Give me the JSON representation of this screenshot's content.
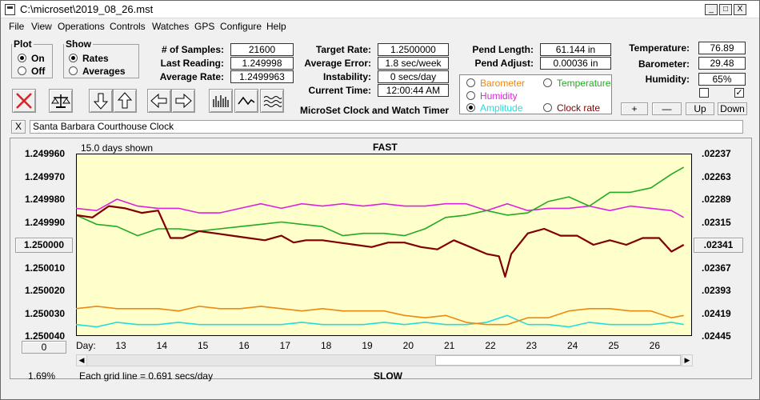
{
  "window": {
    "title": "C:\\microset\\2019_08_26.mst",
    "minimize": "_",
    "maximize": "□",
    "close": "X"
  },
  "menu": [
    "File",
    "View",
    "Operations",
    "Controls",
    "Watches",
    "GPS",
    "Configure",
    "Help"
  ],
  "plot_group": {
    "legend": "Plot",
    "on": "On",
    "off": "Off",
    "selected": "On"
  },
  "show_group": {
    "legend": "Show",
    "rates": "Rates",
    "averages": "Averages",
    "selected": "Rates"
  },
  "stats": {
    "samples_label": "# of Samples:",
    "samples": "21600",
    "last_label": "Last Reading:",
    "last": "1.249998",
    "avg_label": "Average Rate:",
    "avg": "1.2499963"
  },
  "rates": {
    "target_label": "Target Rate:",
    "target": "1.2500000",
    "error_label": "Average Error:",
    "error": "1.8 sec/week",
    "instability_label": "Instability:",
    "instability": "0 secs/day",
    "time_label": "Current Time:",
    "time": "12:00:44 AM"
  },
  "app_caption": "MicroSet Clock and Watch Timer",
  "pend": {
    "length_label": "Pend Length:",
    "length": "61.144 in",
    "adjust_label": "Pend Adjust:",
    "adjust": "0.00036 in"
  },
  "env": {
    "temp_label": "Temperature:",
    "temp": "76.89",
    "baro_label": "Barometer:",
    "baro": "29.48",
    "hum_label": "Humidity:",
    "hum": "65%"
  },
  "series_selector": {
    "barometer": "Barometer",
    "temperature": "Temperature",
    "humidity": "Humidity",
    "amplitude": "Amplitude",
    "clock_rate": "Clock rate"
  },
  "adjust_buttons": {
    "plus": "+",
    "minus": "—",
    "up": "Up",
    "down": "Down"
  },
  "watch_name": "Santa Barbara Courthouse Clock",
  "watch_clear": "X",
  "chart_labels": {
    "days_shown": "15.0 days shown",
    "fast": "FAST",
    "slow": "SLOW",
    "grid_info": "Each grid line = 0.691 secs/day",
    "percent": "1.69%",
    "offset_btn": "0",
    "day_prefix": "Day:",
    "center_value": "1.250000",
    "center_right": ".02341"
  },
  "colors": {
    "plot_bg": "#ffffcc",
    "rate": "#800000",
    "temperature": "#22aa22",
    "humidity": "#dd22dd",
    "barometer": "#ee8811",
    "amplitude": "#22dddd",
    "close_x": "#dd2222"
  },
  "chart_data": {
    "type": "line",
    "x_label": "Day:",
    "x_ticks": [
      "13",
      "14",
      "15",
      "16",
      "17",
      "18",
      "19",
      "20",
      "21",
      "22",
      "23",
      "24",
      "25",
      "26"
    ],
    "y_left_ticks": [
      "1.249960",
      "1.249970",
      "1.249980",
      "1.249990",
      "1.250000",
      "1.250010",
      "1.250020",
      "1.250030",
      "1.250040"
    ],
    "y_right_ticks": [
      ".02237",
      ".02263",
      ".02289",
      ".02315",
      ".02341",
      ".02367",
      ".02393",
      ".02419",
      ".02445"
    ],
    "ylim": [
      1.24996,
      1.25004
    ],
    "y_inverted": true,
    "xlim": [
      12.0,
      27.0
    ],
    "series": [
      {
        "name": "Clock rate",
        "color": "#800000",
        "x": [
          12.0,
          12.4,
          12.8,
          13.2,
          13.6,
          14.0,
          14.3,
          14.6,
          15.0,
          15.4,
          15.8,
          16.2,
          16.6,
          17.0,
          17.3,
          17.6,
          18.0,
          18.4,
          18.8,
          19.2,
          19.6,
          20.0,
          20.4,
          20.8,
          21.2,
          21.6,
          22.0,
          22.3,
          22.45,
          22.6,
          23.0,
          23.4,
          23.8,
          24.2,
          24.6,
          25.0,
          25.4,
          25.8,
          26.2,
          26.5,
          26.8
        ],
        "y": [
          1.249987,
          1.249988,
          1.249983,
          1.249984,
          1.249986,
          1.249985,
          1.249997,
          1.249997,
          1.249994,
          1.249995,
          1.249996,
          1.249997,
          1.249998,
          1.249996,
          1.249999,
          1.249998,
          1.249998,
          1.249999,
          1.25,
          1.250001,
          1.249999,
          1.249999,
          1.250001,
          1.250002,
          1.249998,
          1.250001,
          1.250004,
          1.250005,
          1.250014,
          1.250004,
          1.249995,
          1.249993,
          1.249996,
          1.249996,
          1.25,
          1.249998,
          1.25,
          1.249997,
          1.249997,
          1.250003,
          1.25
        ]
      },
      {
        "name": "Temperature",
        "color": "#22aa22",
        "x": [
          12.0,
          12.5,
          13.0,
          13.5,
          14.0,
          14.5,
          15.0,
          15.5,
          16.0,
          16.5,
          17.0,
          17.5,
          18.0,
          18.5,
          19.0,
          19.5,
          20.0,
          20.5,
          21.0,
          21.5,
          22.0,
          22.5,
          23.0,
          23.5,
          24.0,
          24.5,
          25.0,
          25.5,
          26.0,
          26.5,
          26.8
        ],
        "y": [
          1.249987,
          1.249991,
          1.249992,
          1.249996,
          1.249993,
          1.249993,
          1.249994,
          1.249993,
          1.249992,
          1.249991,
          1.24999,
          1.249991,
          1.249992,
          1.249996,
          1.249995,
          1.249995,
          1.249996,
          1.249993,
          1.249988,
          1.249987,
          1.249985,
          1.249987,
          1.249986,
          1.249981,
          1.249979,
          1.249983,
          1.249977,
          1.249977,
          1.249975,
          1.249969,
          1.249966
        ]
      },
      {
        "name": "Humidity",
        "color": "#dd22dd",
        "x": [
          12.0,
          12.5,
          13.0,
          13.5,
          14.0,
          14.5,
          15.0,
          15.5,
          16.0,
          16.5,
          17.0,
          17.5,
          18.0,
          18.5,
          19.0,
          19.5,
          20.0,
          20.5,
          21.0,
          21.5,
          22.0,
          22.5,
          23.0,
          23.5,
          24.0,
          24.5,
          25.0,
          25.5,
          26.0,
          26.5,
          26.8
        ],
        "y": [
          1.249984,
          1.249985,
          1.24998,
          1.249983,
          1.249984,
          1.249984,
          1.249986,
          1.249986,
          1.249984,
          1.249982,
          1.249984,
          1.249982,
          1.249983,
          1.249982,
          1.249983,
          1.249982,
          1.249983,
          1.249983,
          1.249982,
          1.249982,
          1.249985,
          1.249982,
          1.249985,
          1.249984,
          1.249984,
          1.249983,
          1.249985,
          1.249983,
          1.249984,
          1.249985,
          1.249988
        ]
      },
      {
        "name": "Barometer",
        "color": "#ee8811",
        "x": [
          12.0,
          12.5,
          13.0,
          13.5,
          14.0,
          14.5,
          15.0,
          15.5,
          16.0,
          16.5,
          17.0,
          17.5,
          18.0,
          18.5,
          19.0,
          19.5,
          20.0,
          20.5,
          21.0,
          21.5,
          22.0,
          22.5,
          23.0,
          23.5,
          24.0,
          24.5,
          25.0,
          25.5,
          26.0,
          26.5,
          26.8
        ],
        "y": [
          1.250028,
          1.250027,
          1.250028,
          1.250028,
          1.250028,
          1.250029,
          1.250027,
          1.250028,
          1.250028,
          1.250027,
          1.250028,
          1.250029,
          1.250028,
          1.250029,
          1.250029,
          1.250029,
          1.250031,
          1.250032,
          1.250031,
          1.250034,
          1.250035,
          1.250035,
          1.250032,
          1.250032,
          1.250029,
          1.250028,
          1.250028,
          1.250029,
          1.250029,
          1.250032,
          1.250031
        ]
      },
      {
        "name": "Amplitude",
        "color": "#22dddd",
        "x": [
          12.0,
          12.5,
          13.0,
          13.5,
          14.0,
          14.5,
          15.0,
          15.5,
          16.0,
          16.5,
          17.0,
          17.5,
          18.0,
          18.5,
          19.0,
          19.5,
          20.0,
          20.5,
          21.0,
          21.5,
          22.0,
          22.5,
          23.0,
          23.5,
          24.0,
          24.5,
          25.0,
          25.5,
          26.0,
          26.5,
          26.8
        ],
        "y": [
          1.250035,
          1.250036,
          1.250034,
          1.250035,
          1.250035,
          1.250034,
          1.250035,
          1.250035,
          1.250035,
          1.250035,
          1.250035,
          1.250034,
          1.250035,
          1.250035,
          1.250035,
          1.250034,
          1.250035,
          1.250034,
          1.250035,
          1.250035,
          1.250034,
          1.250031,
          1.250035,
          1.250035,
          1.250036,
          1.250034,
          1.250035,
          1.250035,
          1.250035,
          1.250034,
          1.250035
        ]
      }
    ],
    "grid": true
  }
}
